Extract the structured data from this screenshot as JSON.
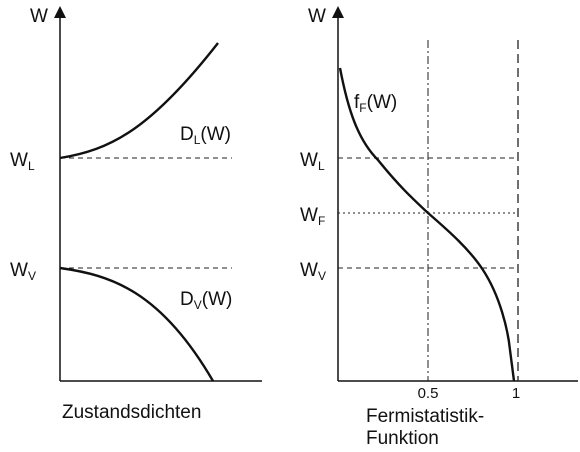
{
  "left": {
    "axis": "W",
    "w_l": {
      "base": "W",
      "sub": "L"
    },
    "w_v": {
      "base": "W",
      "sub": "V"
    },
    "d_l": {
      "base": "D",
      "sub": "L",
      "tail": "(W)"
    },
    "d_v": {
      "base": "D",
      "sub": "V",
      "tail": "(W)"
    },
    "caption": "Zustandsdichten"
  },
  "right": {
    "axis": "W",
    "w_l": {
      "base": "W",
      "sub": "L"
    },
    "w_f": {
      "base": "W",
      "sub": "F"
    },
    "w_v": {
      "base": "W",
      "sub": "V"
    },
    "f_f": {
      "base": "f",
      "sub": "F",
      "tail": "(W)"
    },
    "tick_half": "0.5",
    "tick_one": "1",
    "caption_line1": "Fermistatistik-",
    "caption_line2": "Funktion"
  }
}
